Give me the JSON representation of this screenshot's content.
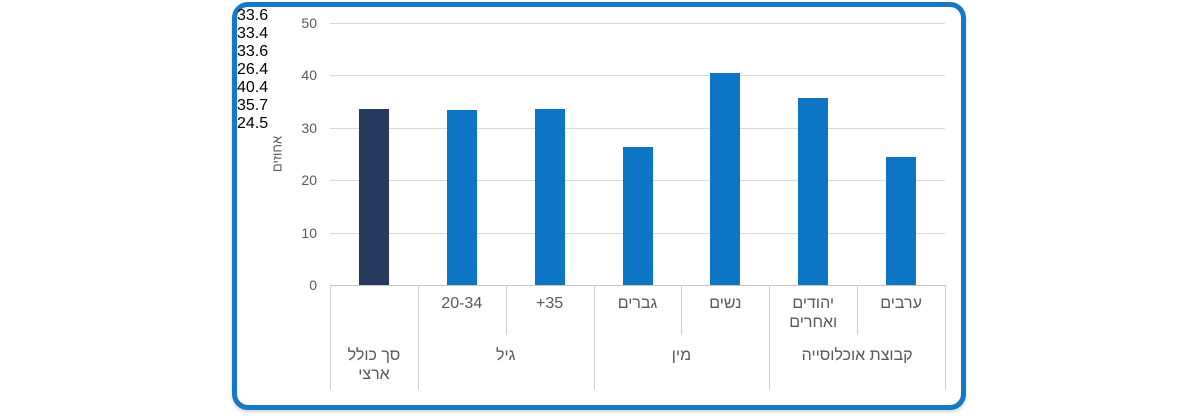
{
  "frame": {
    "border_color": "#1778C5",
    "background": "#FFFFFF"
  },
  "chart_data": {
    "type": "bar",
    "title": "",
    "xlabel": "",
    "ylabel": "אחוזים",
    "ylim": [
      0,
      50
    ],
    "yticks": [
      0,
      10,
      20,
      30,
      40,
      50
    ],
    "grid": true,
    "legend": "none",
    "value_format_decimals": 1,
    "colors": {
      "default_bar": "#0C76C5",
      "highlight_bar": "#263A5E",
      "gridline": "#D9D9D9",
      "axis_line": "#C6C6C6",
      "text": "#595959",
      "data_label": "#404040"
    },
    "groups": [
      {
        "label": "סך כולל ארצי",
        "dir": "rtl",
        "bars": [
          {
            "label": "",
            "dir": "ltr",
            "value": 33.6,
            "highlight": true
          }
        ]
      },
      {
        "label": "גיל",
        "dir": "rtl",
        "bars": [
          {
            "label": "20-34",
            "dir": "ltr",
            "value": 33.4,
            "highlight": false
          },
          {
            "label": "+35",
            "dir": "ltr",
            "value": 33.6,
            "highlight": false
          }
        ]
      },
      {
        "label": "מין",
        "dir": "rtl",
        "bars": [
          {
            "label": "גברים",
            "dir": "rtl",
            "value": 26.4,
            "highlight": false
          },
          {
            "label": "נשים",
            "dir": "rtl",
            "value": 40.4,
            "highlight": false
          }
        ]
      },
      {
        "label": "קבוצת אוכלוסייה",
        "dir": "rtl",
        "bars": [
          {
            "label": "יהודים ואחרים",
            "dir": "rtl",
            "value": 35.7,
            "highlight": false
          },
          {
            "label": "ערבים",
            "dir": "rtl",
            "value": 24.5,
            "highlight": false
          }
        ]
      }
    ]
  }
}
